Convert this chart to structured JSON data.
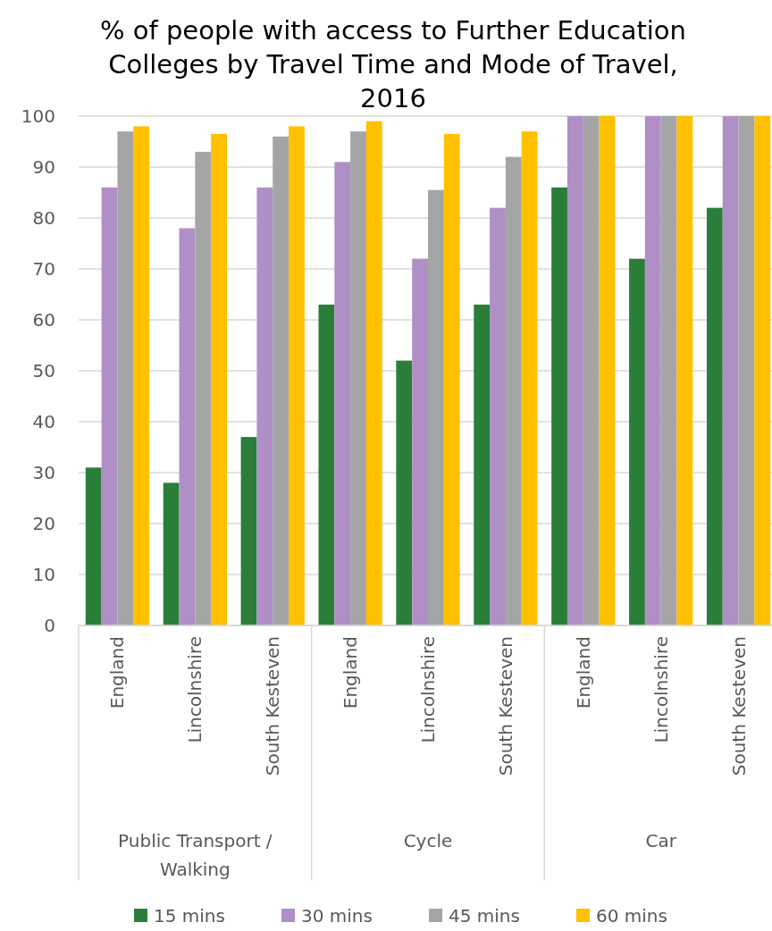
{
  "chart_data": {
    "type": "bar",
    "title": "% of people with access to Further Education Colleges by Travel Time and Mode of Travel, 2016",
    "categories": [
      "England",
      "Lincolnshire",
      "South Kesteven",
      "England",
      "Lincolnshire",
      "South Kesteven",
      "England",
      "Lincolnshire",
      "South Kesteven"
    ],
    "annotations": [
      "Public Transport / Walking",
      "Cycle",
      "Car"
    ],
    "series": [
      {
        "name": "15 mins",
        "color": "#2a7e3a",
        "values": [
          31,
          28,
          37,
          63,
          52,
          63,
          86,
          72,
          82
        ]
      },
      {
        "name": "30 mins",
        "color": "#b08fc7",
        "values": [
          86,
          78,
          86,
          91,
          72,
          82,
          100,
          100,
          100
        ]
      },
      {
        "name": "45 mins",
        "color": "#a5a5a5",
        "values": [
          97,
          93,
          96,
          97,
          85.5,
          92,
          100,
          100,
          100
        ]
      },
      {
        "name": "60 mins",
        "color": "#ffc000",
        "values": [
          98,
          96.5,
          98,
          99,
          96.5,
          97,
          100,
          100,
          100
        ]
      }
    ],
    "ylim": [
      0,
      100
    ],
    "yticks": [
      0,
      10,
      20,
      30,
      40,
      50,
      60,
      70,
      80,
      90,
      100
    ],
    "grid": "y",
    "legend": "bottom"
  }
}
